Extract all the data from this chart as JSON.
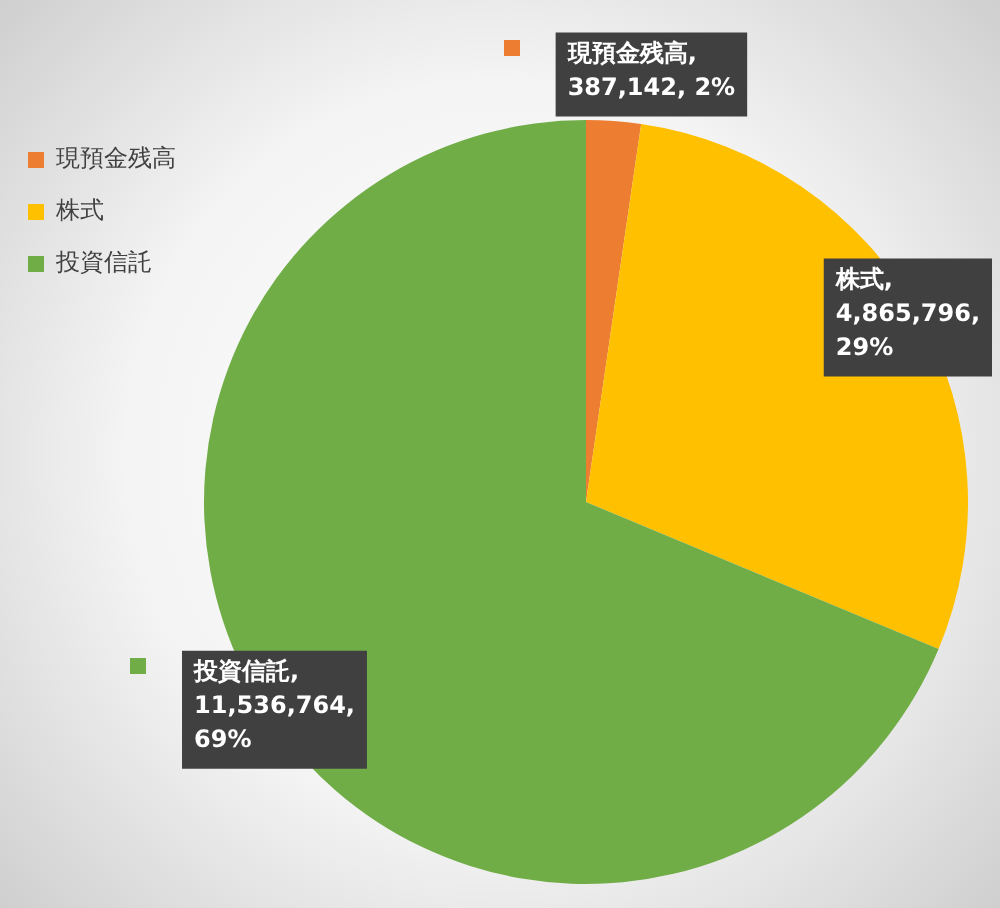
{
  "chart_data": {
    "type": "pie",
    "categories": [
      "現預金残高",
      "株式",
      "投資信託"
    ],
    "values": [
      387142,
      4865796,
      11536764
    ],
    "colors": [
      "#ed7d31",
      "#ffc000",
      "#70ad47"
    ],
    "value_labels": [
      "現預金残高, 387,142, 2%",
      "株式, 4,865,796, 29%",
      "投資信託, 11,536,764, 69%"
    ],
    "legend": "top left"
  }
}
